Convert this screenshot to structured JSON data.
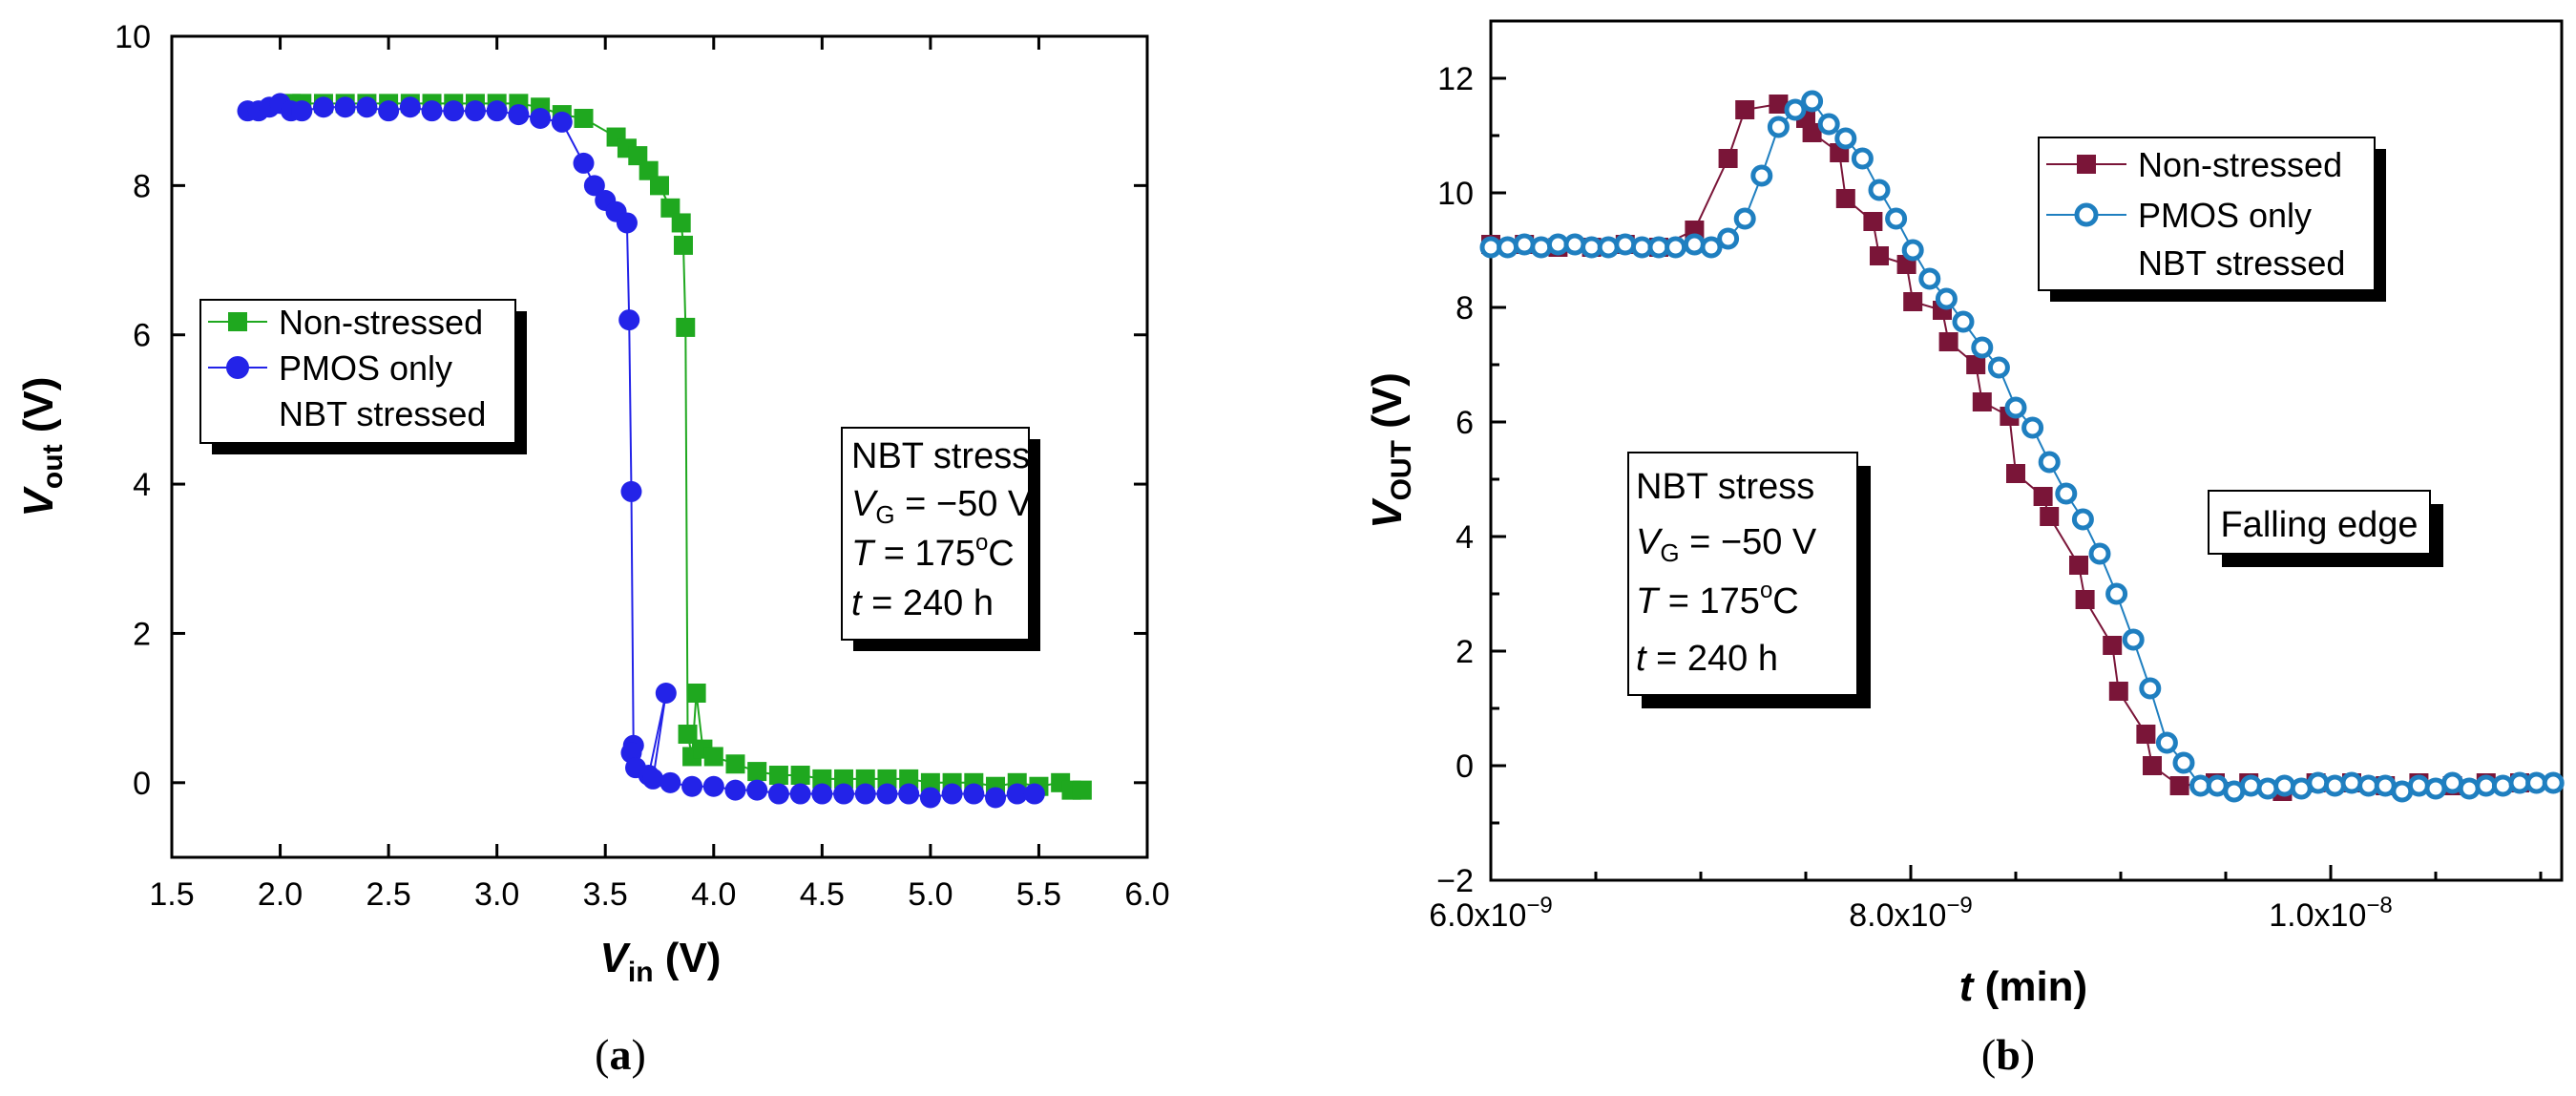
{
  "chart_data": [
    {
      "type": "line",
      "panel_label": "a",
      "xlabel": "V",
      "xlabel_sub": "in",
      "xlabel_unit": "(V)",
      "ylabel": "V",
      "ylabel_sub": "out",
      "ylabel_unit": "(V)",
      "xlim": [
        1.5,
        6.0
      ],
      "ylim": [
        -1,
        10
      ],
      "xticks": [
        1.5,
        2.0,
        2.5,
        3.0,
        3.5,
        4.0,
        4.5,
        5.0,
        5.5,
        6.0
      ],
      "xtick_labels": [
        "1.5",
        "2.0",
        "2.5",
        "3.0",
        "3.5",
        "4.0",
        "4.5",
        "5.0",
        "5.5",
        "6.0"
      ],
      "yticks": [
        0,
        2,
        4,
        6,
        8,
        10
      ],
      "ytick_labels": [
        "0",
        "2",
        "4",
        "6",
        "8",
        "10"
      ],
      "legend": [
        "Non-stressed",
        "PMOS only",
        "NBT stressed"
      ],
      "legend_position": "middle-left",
      "annotation": {
        "line1": "NBT stress",
        "line2_var": "V",
        "line2_sub": "G",
        "line2_rest": " = −50 V",
        "line3_var": "T",
        "line3_rest": " = 175",
        "line3_sup": "o",
        "line3_end": "C",
        "line4_var": "t",
        "line4_rest": " = 240 h"
      },
      "series": [
        {
          "name": "Non-stressed",
          "color": "#1fa81f",
          "marker": "square",
          "x": [
            2.05,
            2.1,
            2.2,
            2.3,
            2.4,
            2.5,
            2.6,
            2.7,
            2.8,
            2.9,
            3.0,
            3.1,
            3.2,
            3.3,
            3.4,
            3.55,
            3.6,
            3.65,
            3.7,
            3.75,
            3.8,
            3.85,
            3.86,
            3.87,
            3.88,
            3.9,
            3.92,
            3.95,
            4.0,
            4.1,
            4.2,
            4.3,
            4.4,
            4.5,
            4.6,
            4.7,
            4.8,
            4.9,
            5.0,
            5.1,
            5.2,
            5.3,
            5.4,
            5.5,
            5.6,
            5.65,
            5.7
          ],
          "y": [
            9.1,
            9.1,
            9.1,
            9.1,
            9.1,
            9.1,
            9.1,
            9.1,
            9.1,
            9.1,
            9.1,
            9.1,
            9.05,
            8.95,
            8.9,
            8.65,
            8.5,
            8.4,
            8.2,
            8.0,
            7.7,
            7.5,
            7.2,
            6.1,
            0.65,
            0.35,
            1.2,
            0.45,
            0.35,
            0.25,
            0.15,
            0.1,
            0.1,
            0.05,
            0.05,
            0.05,
            0.05,
            0.05,
            0.0,
            0.0,
            0.0,
            -0.05,
            0.0,
            -0.05,
            0.0,
            -0.1,
            -0.1
          ]
        },
        {
          "name": "PMOS only NBT stressed",
          "color": "#2323e8",
          "marker": "circle",
          "x": [
            1.85,
            1.9,
            1.95,
            2.0,
            2.05,
            2.1,
            2.2,
            2.3,
            2.4,
            2.5,
            2.6,
            2.7,
            2.8,
            2.9,
            3.0,
            3.1,
            3.2,
            3.3,
            3.4,
            3.45,
            3.5,
            3.55,
            3.6,
            3.61,
            3.62,
            3.63,
            3.62,
            3.64,
            3.7,
            3.78,
            3.72,
            3.8,
            3.9,
            4.0,
            4.1,
            4.2,
            4.3,
            4.4,
            4.5,
            4.6,
            4.7,
            4.8,
            4.9,
            5.0,
            5.1,
            5.2,
            5.3,
            5.4,
            5.48
          ],
          "y": [
            9.0,
            9.0,
            9.05,
            9.1,
            9.0,
            9.0,
            9.05,
            9.05,
            9.05,
            9.0,
            9.05,
            9.0,
            9.0,
            9.0,
            9.0,
            8.95,
            8.9,
            8.85,
            8.3,
            8.0,
            7.8,
            7.65,
            7.5,
            6.2,
            3.9,
            0.5,
            0.4,
            0.2,
            0.1,
            1.2,
            0.05,
            0.0,
            -0.05,
            -0.05,
            -0.1,
            -0.1,
            -0.15,
            -0.15,
            -0.15,
            -0.15,
            -0.15,
            -0.15,
            -0.15,
            -0.2,
            -0.15,
            -0.15,
            -0.2,
            -0.15,
            -0.15
          ]
        }
      ]
    },
    {
      "type": "line",
      "panel_label": "b",
      "xlabel": "t",
      "xlabel_unit": "(min)",
      "ylabel": "V",
      "ylabel_sub": "OUT",
      "ylabel_unit": "(V)",
      "xlim": [
        6e-09,
        1.11e-08
      ],
      "ylim": [
        -2,
        13
      ],
      "xticks": [
        6e-09,
        8e-09,
        1e-08
      ],
      "xtick_labels": [
        {
          "mant": "6.0x10",
          "exp": "−9"
        },
        {
          "mant": "8.0x10",
          "exp": "−9"
        },
        {
          "mant": "1.0x10",
          "exp": "−8"
        }
      ],
      "yticks": [
        -2,
        0,
        2,
        4,
        6,
        8,
        10,
        12
      ],
      "ytick_labels": [
        "−2",
        "0",
        "2",
        "4",
        "6",
        "8",
        "10",
        "12"
      ],
      "legend": [
        "Non-stressed",
        "PMOS only",
        "NBT stressed"
      ],
      "legend_position": "top-right",
      "annotation": {
        "line1": "NBT stress",
        "line2_var": "V",
        "line2_sub": "G",
        "line2_rest": " = −50 V",
        "line3_var": "T",
        "line3_rest": " = 175",
        "line3_sup": "o",
        "line3_end": "C",
        "line4_var": "t",
        "line4_rest": " = 240 h"
      },
      "annotation2": "Falling edge",
      "series": [
        {
          "name": "Non-stressed",
          "color": "#7a1538",
          "marker": "square",
          "x_e9": [
            6.0,
            6.16,
            6.32,
            6.48,
            6.64,
            6.8,
            6.97,
            7.13,
            7.21,
            7.37,
            7.5,
            7.53,
            7.66,
            7.69,
            7.82,
            7.85,
            7.98,
            8.01,
            8.15,
            8.18,
            8.31,
            8.34,
            8.47,
            8.5,
            8.63,
            8.66,
            8.8,
            8.83,
            8.96,
            8.99,
            9.12,
            9.15,
            9.28,
            9.45,
            9.61,
            9.77,
            9.93,
            10.1,
            10.26,
            10.42,
            10.58,
            10.74,
            10.9
          ],
          "y": [
            9.1,
            9.1,
            9.05,
            9.05,
            9.1,
            9.05,
            9.35,
            10.6,
            11.45,
            11.55,
            11.3,
            11.05,
            10.7,
            9.9,
            9.5,
            8.9,
            8.75,
            8.1,
            7.95,
            7.4,
            7.0,
            6.35,
            6.1,
            5.1,
            4.7,
            4.35,
            3.5,
            2.9,
            2.1,
            1.3,
            0.55,
            0.0,
            -0.35,
            -0.3,
            -0.3,
            -0.45,
            -0.3,
            -0.3,
            -0.35,
            -0.3,
            -0.35,
            -0.3,
            -0.3
          ]
        },
        {
          "name": "PMOS only NBT stressed",
          "color": "#1f7fc0",
          "marker": "open-circle",
          "x_e9": [
            6.0,
            6.08,
            6.16,
            6.24,
            6.32,
            6.4,
            6.48,
            6.56,
            6.64,
            6.72,
            6.8,
            6.88,
            6.97,
            7.05,
            7.13,
            7.21,
            7.29,
            7.37,
            7.45,
            7.53,
            7.61,
            7.69,
            7.77,
            7.85,
            7.93,
            8.01,
            8.09,
            8.17,
            8.25,
            8.34,
            8.42,
            8.5,
            8.58,
            8.66,
            8.74,
            8.82,
            8.9,
            8.98,
            9.06,
            9.14,
            9.22,
            9.3,
            9.38,
            9.46,
            9.54,
            9.62,
            9.7,
            9.78,
            9.86,
            9.94,
            10.02,
            10.1,
            10.18,
            10.26,
            10.34,
            10.42,
            10.5,
            10.58,
            10.66,
            10.74,
            10.82,
            10.9,
            10.98,
            11.06
          ],
          "y": [
            9.05,
            9.05,
            9.1,
            9.05,
            9.1,
            9.1,
            9.05,
            9.05,
            9.1,
            9.05,
            9.05,
            9.05,
            9.1,
            9.05,
            9.2,
            9.55,
            10.3,
            11.15,
            11.45,
            11.6,
            11.2,
            10.95,
            10.6,
            10.05,
            9.55,
            9.0,
            8.5,
            8.15,
            7.75,
            7.3,
            6.95,
            6.25,
            5.9,
            5.3,
            4.75,
            4.3,
            3.7,
            3.0,
            2.2,
            1.35,
            0.4,
            0.05,
            -0.35,
            -0.35,
            -0.45,
            -0.35,
            -0.4,
            -0.35,
            -0.4,
            -0.3,
            -0.35,
            -0.3,
            -0.35,
            -0.35,
            -0.45,
            -0.35,
            -0.4,
            -0.3,
            -0.4,
            -0.35,
            -0.35,
            -0.3,
            -0.3,
            -0.3
          ]
        }
      ]
    }
  ]
}
